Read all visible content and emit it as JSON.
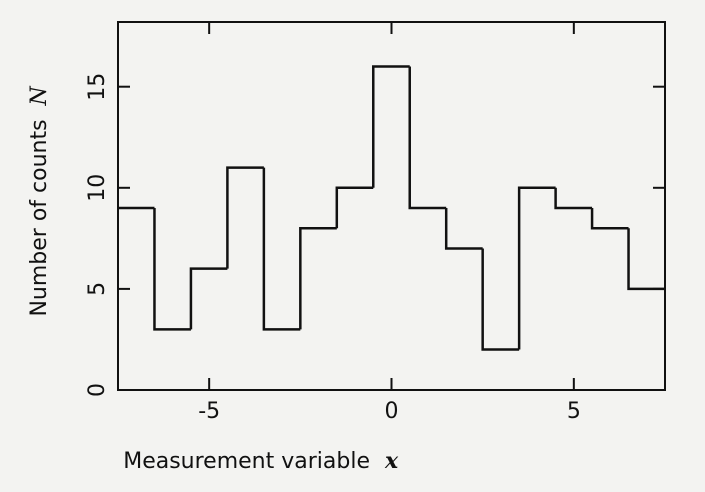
{
  "chart_data": {
    "type": "histogram",
    "bins": [
      -7.5,
      -6.5,
      -5.5,
      -4.5,
      -3.5,
      -2.5,
      -1.5,
      -0.5,
      0.5,
      1.5,
      2.5,
      3.5,
      4.5,
      5.5,
      6.5,
      7.5
    ],
    "values": [
      9,
      3,
      6,
      11,
      3,
      8,
      10,
      16,
      9,
      7,
      2,
      10,
      9,
      8,
      5
    ],
    "color": "#111111",
    "xlabel": "Measurement variable",
    "xlabel_symbol": "x",
    "ylabel": "Number of counts",
    "ylabel_symbol": "N",
    "xlim": [
      -7.5,
      7.5
    ],
    "xticks": [
      -5,
      0,
      5
    ],
    "ylim": [
      0,
      18.2
    ],
    "yticks": [
      0,
      5,
      10,
      15
    ],
    "grid": false
  }
}
